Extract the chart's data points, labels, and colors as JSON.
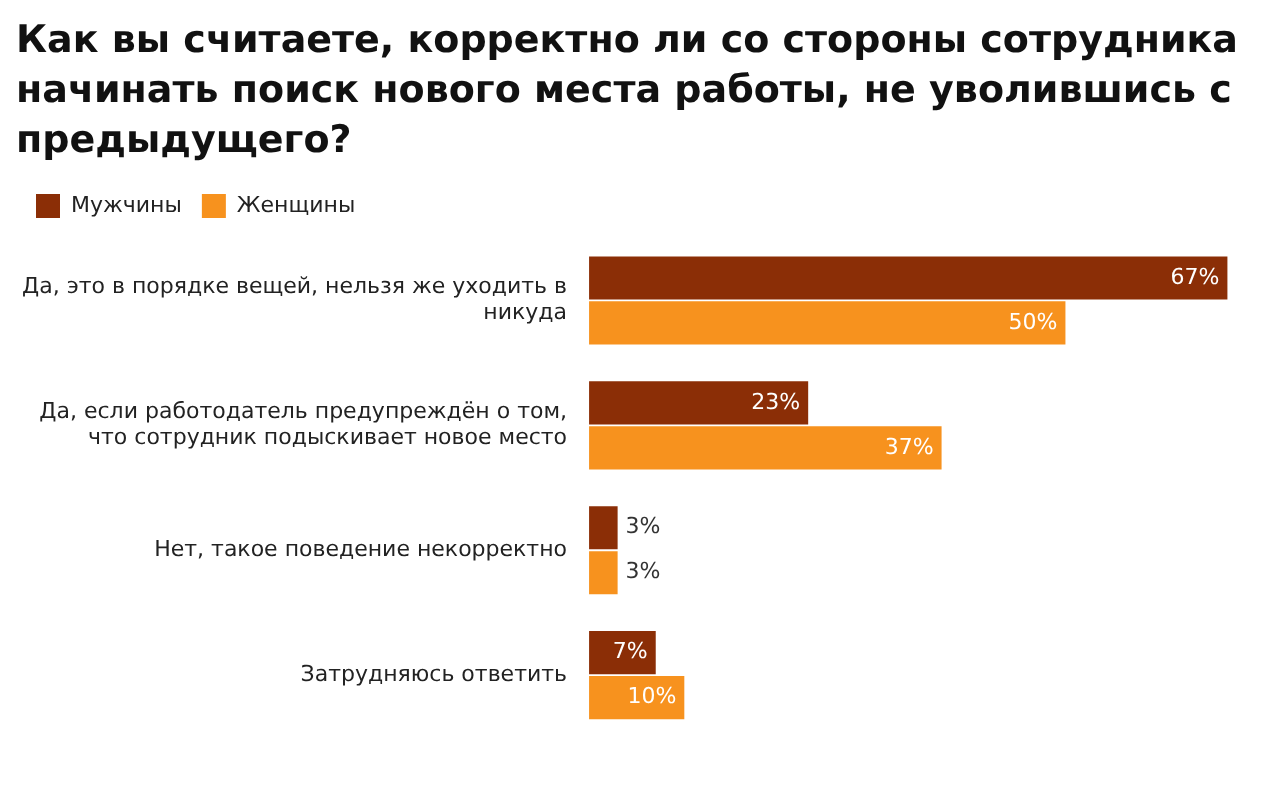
{
  "chart_data": {
    "type": "bar",
    "orientation": "horizontal",
    "title": "Как вы считаете, корректно ли со стороны сотрудника начинать поиск нового места работы, не уволившись с предыдущего?",
    "categories": [
      "Да, это в порядке вещей, нельзя же уходить в никуда",
      "Да, если работодатель предупреждён о том, что сотрудник подыскивает новое место",
      "Нет, такое поведение некорректно",
      "Затрудняюсь ответить"
    ],
    "series": [
      {
        "name": "Мужчины",
        "color": "#8b2e06",
        "values": [
          67,
          23,
          3,
          7
        ],
        "value_labels": [
          "67%",
          "23%",
          "3%",
          "7%"
        ]
      },
      {
        "name": "Женщины",
        "color": "#f7921e",
        "values": [
          50,
          37,
          3,
          10
        ],
        "value_labels": [
          "50%",
          "37%",
          "3%",
          "10%"
        ]
      }
    ],
    "legend": "top left",
    "grid": false
  }
}
